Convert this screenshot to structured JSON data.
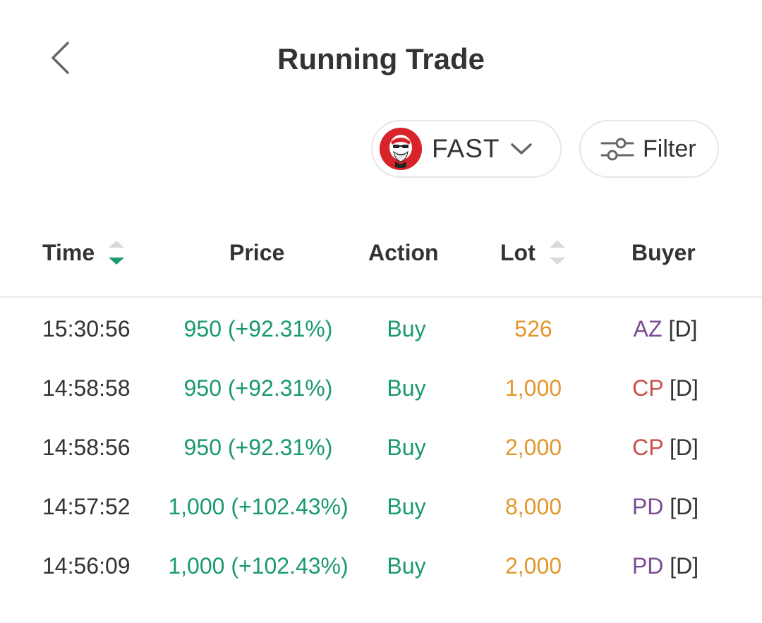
{
  "header": {
    "title": "Running Trade"
  },
  "controls": {
    "stock_code": "FAST",
    "filter_label": "Filter"
  },
  "colors": {
    "price_up": "#1a9a6a",
    "action_buy": "#1a9a6a",
    "lot": "#e3962d",
    "broker_purple": "#7b4a93",
    "broker_red": "#c9504a",
    "sort_active": "#1a9a6a",
    "sort_inactive": "#d9d9d9"
  },
  "table": {
    "columns": [
      "Time",
      "Price",
      "Action",
      "Lot",
      "Buyer"
    ],
    "rows": [
      {
        "time": "15:30:56",
        "price": "950 (+92.31%)",
        "action": "Buy",
        "lot": "526",
        "broker": "AZ",
        "market": "[D]",
        "broker_color": "#7b4a93"
      },
      {
        "time": "14:58:58",
        "price": "950 (+92.31%)",
        "action": "Buy",
        "lot": "1,000",
        "broker": "CP",
        "market": "[D]",
        "broker_color": "#c9504a"
      },
      {
        "time": "14:58:56",
        "price": "950 (+92.31%)",
        "action": "Buy",
        "lot": "2,000",
        "broker": "CP",
        "market": "[D]",
        "broker_color": "#c9504a"
      },
      {
        "time": "14:57:52",
        "price": "1,000 (+102.43%)",
        "action": "Buy",
        "lot": "8,000",
        "broker": "PD",
        "market": "[D]",
        "broker_color": "#7b4a93"
      },
      {
        "time": "14:56:09",
        "price": "1,000 (+102.43%)",
        "action": "Buy",
        "lot": "2,000",
        "broker": "PD",
        "market": "[D]",
        "broker_color": "#7b4a93"
      }
    ]
  }
}
